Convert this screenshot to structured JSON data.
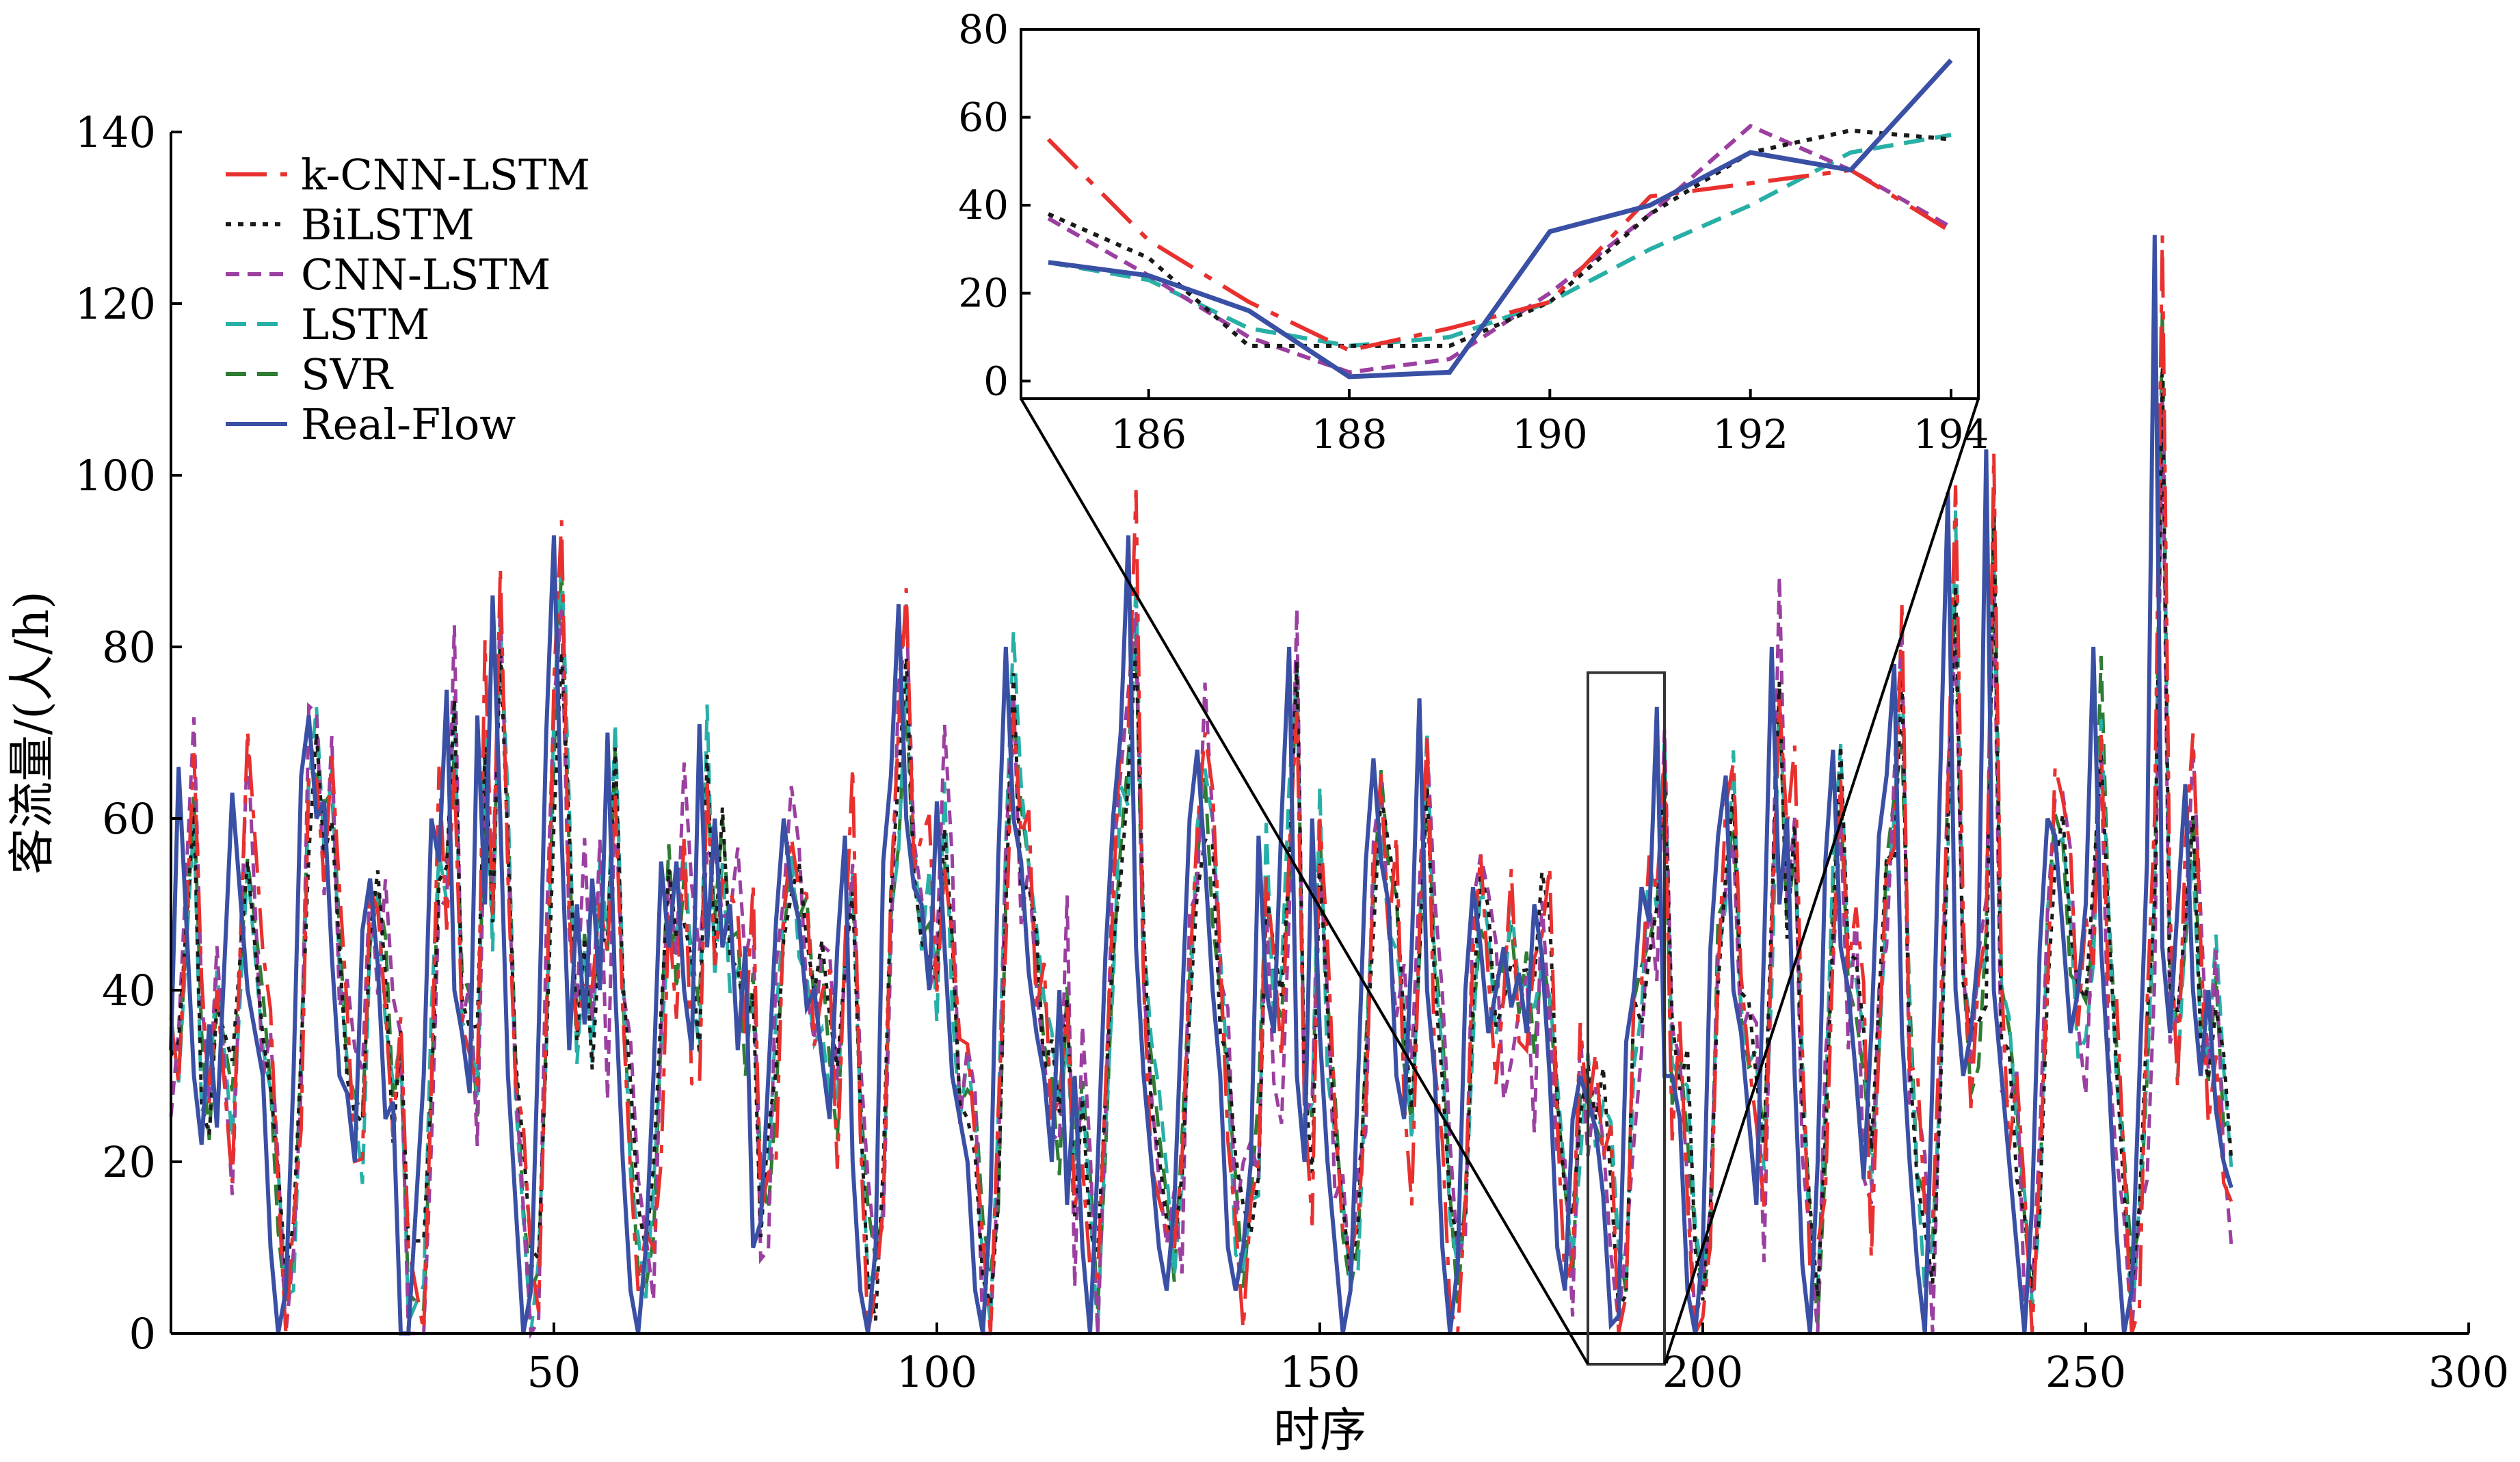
{
  "chart_data": [
    {
      "id": "main",
      "type": "line",
      "title": "",
      "xlabel": "时序",
      "ylabel": "客流量/(人/h)",
      "xlim": [
        0,
        300
      ],
      "ylim": [
        0,
        140
      ],
      "xticks": [
        50,
        100,
        150,
        200,
        250,
        300
      ],
      "yticks": [
        0,
        20,
        40,
        60,
        80,
        100,
        120,
        140
      ],
      "legend_position": "top-left",
      "grid": false,
      "zoom_box": {
        "x_range": [
          185,
          195
        ],
        "y_range": [
          0,
          77
        ]
      },
      "series": [
        {
          "name": "k-CNN-LSTM",
          "color": "#e8312f",
          "dash": "dashdot",
          "style": "k"
        },
        {
          "name": "BiLSTM",
          "color": "#1a1a1a",
          "dash": "dot",
          "style": "b"
        },
        {
          "name": "CNN-LSTM",
          "color": "#9b3fa0",
          "dash": "dash-short",
          "style": "c"
        },
        {
          "name": "LSTM",
          "color": "#27b0a8",
          "dash": "dash",
          "style": "l"
        },
        {
          "name": "SVR",
          "color": "#2e7d32",
          "dash": "dash",
          "style": "s"
        },
        {
          "name": "Real-Flow",
          "color": "#3a50a5",
          "dash": "solid",
          "style": "r"
        }
      ],
      "real_flow_keypoints": [
        [
          0,
          33
        ],
        [
          1,
          66
        ],
        [
          3,
          30
        ],
        [
          4,
          22
        ],
        [
          5,
          36
        ],
        [
          6,
          24
        ],
        [
          8,
          63
        ],
        [
          10,
          40
        ],
        [
          12,
          30
        ],
        [
          13,
          10
        ],
        [
          14,
          0
        ],
        [
          15,
          5
        ],
        [
          16,
          30
        ],
        [
          17,
          65
        ],
        [
          18,
          72
        ],
        [
          19,
          60
        ],
        [
          20,
          62
        ],
        [
          21,
          44
        ],
        [
          22,
          30
        ],
        [
          23,
          28
        ],
        [
          24,
          20
        ],
        [
          25,
          47
        ],
        [
          26,
          53
        ],
        [
          27,
          43
        ],
        [
          28,
          25
        ],
        [
          29,
          27
        ],
        [
          30,
          0
        ],
        [
          31,
          0
        ],
        [
          33,
          30
        ],
        [
          34,
          60
        ],
        [
          35,
          55
        ],
        [
          36,
          75
        ],
        [
          37,
          40
        ],
        [
          38,
          35
        ],
        [
          39,
          28
        ],
        [
          40,
          72
        ],
        [
          41,
          50
        ],
        [
          42,
          86
        ],
        [
          43,
          60
        ],
        [
          44,
          30
        ],
        [
          45,
          15
        ],
        [
          46,
          0
        ],
        [
          47,
          5
        ],
        [
          48,
          35
        ],
        [
          49,
          70
        ],
        [
          50,
          93
        ],
        [
          51,
          58
        ],
        [
          52,
          33
        ],
        [
          53,
          50
        ],
        [
          54,
          36
        ],
        [
          55,
          53
        ],
        [
          56,
          40
        ],
        [
          57,
          70
        ],
        [
          58,
          40
        ],
        [
          59,
          20
        ],
        [
          60,
          5
        ],
        [
          61,
          0
        ],
        [
          62,
          10
        ],
        [
          63,
          30
        ],
        [
          64,
          55
        ],
        [
          65,
          45
        ],
        [
          66,
          55
        ],
        [
          67,
          40
        ],
        [
          68,
          33
        ],
        [
          69,
          71
        ],
        [
          70,
          45
        ],
        [
          71,
          60
        ],
        [
          72,
          45
        ],
        [
          73,
          50
        ],
        [
          74,
          33
        ],
        [
          75,
          45
        ],
        [
          76,
          10
        ],
        [
          77,
          13
        ],
        [
          78,
          30
        ],
        [
          79,
          48
        ],
        [
          80,
          60
        ],
        [
          81,
          52
        ],
        [
          82,
          48
        ],
        [
          83,
          38
        ],
        [
          84,
          40
        ],
        [
          85,
          32
        ],
        [
          86,
          25
        ],
        [
          87,
          45
        ],
        [
          88,
          58
        ],
        [
          89,
          20
        ],
        [
          90,
          5
        ],
        [
          91,
          0
        ],
        [
          92,
          10
        ],
        [
          93,
          55
        ],
        [
          94,
          65
        ],
        [
          95,
          85
        ],
        [
          96,
          60
        ],
        [
          97,
          52
        ],
        [
          98,
          50
        ],
        [
          99,
          40
        ],
        [
          100,
          62
        ],
        [
          101,
          45
        ],
        [
          102,
          30
        ],
        [
          103,
          25
        ],
        [
          104,
          20
        ],
        [
          105,
          5
        ],
        [
          106,
          0
        ],
        [
          107,
          15
        ],
        [
          108,
          55
        ],
        [
          109,
          80
        ],
        [
          110,
          60
        ],
        [
          111,
          55
        ],
        [
          112,
          42
        ],
        [
          113,
          35
        ],
        [
          114,
          30
        ],
        [
          115,
          20
        ],
        [
          116,
          40
        ],
        [
          117,
          15
        ],
        [
          118,
          30
        ],
        [
          119,
          10
        ],
        [
          120,
          0
        ],
        [
          121,
          20
        ],
        [
          122,
          44
        ],
        [
          123,
          60
        ],
        [
          124,
          70
        ],
        [
          125,
          93
        ],
        [
          126,
          45
        ],
        [
          127,
          30
        ],
        [
          128,
          20
        ],
        [
          129,
          10
        ],
        [
          130,
          5
        ],
        [
          131,
          15
        ],
        [
          132,
          38
        ],
        [
          133,
          60
        ],
        [
          134,
          68
        ],
        [
          135,
          55
        ],
        [
          136,
          40
        ],
        [
          137,
          30
        ],
        [
          138,
          10
        ],
        [
          139,
          5
        ],
        [
          140,
          10
        ],
        [
          141,
          20
        ],
        [
          142,
          58
        ],
        [
          143,
          40
        ],
        [
          144,
          35
        ],
        [
          145,
          60
        ],
        [
          146,
          80
        ],
        [
          147,
          30
        ],
        [
          148,
          20
        ],
        [
          149,
          60
        ],
        [
          150,
          35
        ],
        [
          151,
          20
        ],
        [
          152,
          10
        ],
        [
          153,
          0
        ],
        [
          154,
          5
        ],
        [
          155,
          30
        ],
        [
          156,
          55
        ],
        [
          157,
          67
        ],
        [
          158,
          55
        ],
        [
          159,
          50
        ],
        [
          160,
          30
        ],
        [
          161,
          25
        ],
        [
          162,
          45
        ],
        [
          163,
          74
        ],
        [
          164,
          40
        ],
        [
          165,
          30
        ],
        [
          166,
          10
        ],
        [
          167,
          0
        ],
        [
          168,
          8
        ],
        [
          169,
          40
        ],
        [
          170,
          52
        ],
        [
          171,
          45
        ],
        [
          172,
          35
        ],
        [
          173,
          40
        ],
        [
          174,
          45
        ],
        [
          175,
          38
        ],
        [
          176,
          42
        ],
        [
          177,
          35
        ],
        [
          178,
          50
        ],
        [
          179,
          44
        ],
        [
          180,
          30
        ],
        [
          181,
          10
        ],
        [
          182,
          5
        ],
        [
          183,
          25
        ],
        [
          184,
          30
        ],
        [
          185,
          27
        ],
        [
          186,
          24
        ],
        [
          187,
          16
        ],
        [
          188,
          1
        ],
        [
          189,
          2
        ],
        [
          190,
          34
        ],
        [
          191,
          40
        ],
        [
          192,
          52
        ],
        [
          193,
          48
        ],
        [
          194,
          73
        ],
        [
          195,
          30
        ],
        [
          196,
          30
        ],
        [
          197,
          25
        ],
        [
          198,
          5
        ],
        [
          199,
          0
        ],
        [
          200,
          10
        ],
        [
          201,
          45
        ],
        [
          202,
          58
        ],
        [
          203,
          65
        ],
        [
          204,
          40
        ],
        [
          205,
          35
        ],
        [
          206,
          25
        ],
        [
          207,
          15
        ],
        [
          208,
          45
        ],
        [
          209,
          80
        ],
        [
          210,
          50
        ],
        [
          211,
          60
        ],
        [
          212,
          30
        ],
        [
          213,
          8
        ],
        [
          214,
          0
        ],
        [
          215,
          20
        ],
        [
          216,
          55
        ],
        [
          217,
          68
        ],
        [
          218,
          45
        ],
        [
          219,
          40
        ],
        [
          220,
          30
        ],
        [
          221,
          18
        ],
        [
          222,
          35
        ],
        [
          223,
          58
        ],
        [
          224,
          65
        ],
        [
          225,
          78
        ],
        [
          226,
          35
        ],
        [
          227,
          20
        ],
        [
          228,
          8
        ],
        [
          229,
          0
        ],
        [
          230,
          30
        ],
        [
          231,
          65
        ],
        [
          232,
          98
        ],
        [
          233,
          40
        ],
        [
          234,
          30
        ],
        [
          235,
          35
        ],
        [
          236,
          45
        ],
        [
          237,
          103
        ],
        [
          238,
          40
        ],
        [
          239,
          30
        ],
        [
          240,
          20
        ],
        [
          241,
          10
        ],
        [
          242,
          0
        ],
        [
          243,
          15
        ],
        [
          244,
          45
        ],
        [
          245,
          60
        ],
        [
          246,
          58
        ],
        [
          247,
          47
        ],
        [
          248,
          35
        ],
        [
          249,
          40
        ],
        [
          250,
          50
        ],
        [
          251,
          80
        ],
        [
          252,
          45
        ],
        [
          253,
          30
        ],
        [
          254,
          12
        ],
        [
          255,
          0
        ],
        [
          256,
          5
        ],
        [
          257,
          30
        ],
        [
          258,
          55
        ],
        [
          259,
          128
        ],
        [
          260,
          45
        ],
        [
          261,
          35
        ],
        [
          262,
          50
        ],
        [
          263,
          64
        ],
        [
          264,
          40
        ],
        [
          265,
          30
        ],
        [
          266,
          40
        ],
        [
          267,
          26
        ],
        [
          268,
          20
        ],
        [
          269,
          17
        ]
      ]
    },
    {
      "id": "inset",
      "type": "line",
      "title": "",
      "xlim": [
        185,
        194
      ],
      "ylim": [
        -4,
        80
      ],
      "xticks": [
        186,
        188,
        190,
        192,
        194
      ],
      "yticks": [
        0,
        20,
        40,
        60,
        80
      ],
      "x": [
        185,
        186,
        187,
        188,
        189,
        190,
        191,
        192,
        193,
        194
      ],
      "series": [
        {
          "name": "k-CNN-LSTM",
          "values": [
            55,
            32,
            18,
            7,
            12,
            18,
            42,
            45,
            48,
            34
          ]
        },
        {
          "name": "BiLSTM",
          "values": [
            38,
            28,
            8,
            8,
            8,
            18,
            38,
            52,
            57,
            55
          ]
        },
        {
          "name": "CNN-LSTM",
          "values": [
            37,
            24,
            10,
            2,
            5,
            20,
            38,
            58,
            48,
            35
          ]
        },
        {
          "name": "LSTM",
          "values": [
            27,
            23,
            12,
            8,
            10,
            18,
            30,
            40,
            52,
            56
          ]
        },
        {
          "name": "SVR",
          "values": [
            27,
            23,
            12,
            8,
            10,
            18,
            30,
            40,
            52,
            56
          ]
        },
        {
          "name": "Real-Flow",
          "values": [
            27,
            24,
            16,
            1,
            2,
            34,
            40,
            52,
            48,
            73
          ]
        }
      ]
    }
  ]
}
